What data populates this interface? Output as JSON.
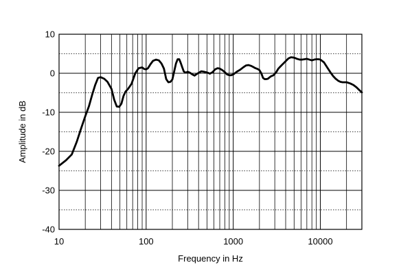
{
  "chart_data": {
    "type": "line",
    "xlabel": "Frequency in Hz",
    "ylabel": "Amplitude in dB",
    "xscale": "log",
    "xlim": [
      10,
      30000
    ],
    "ylim": [
      -40,
      10
    ],
    "grid": true,
    "legend": "none",
    "colors": {
      "line": "#000000",
      "grid": "#000000",
      "background": "#ffffff"
    },
    "x_tick_labels": [
      {
        "value": 10,
        "label": "10"
      },
      {
        "value": 100,
        "label": "100"
      },
      {
        "value": 1000,
        "label": "1000"
      },
      {
        "value": 10000,
        "label": "10000"
      }
    ],
    "y_tick_labels": [
      {
        "value": 10,
        "label": "10"
      },
      {
        "value": 0,
        "label": "0"
      },
      {
        "value": -10,
        "label": "-10"
      },
      {
        "value": -20,
        "label": "-20"
      },
      {
        "value": -30,
        "label": "-30"
      },
      {
        "value": -40,
        "label": "-40"
      }
    ],
    "series": [
      {
        "x": [
          10,
          12,
          14,
          16,
          18,
          20,
          22,
          24,
          26,
          28,
          30,
          33,
          36,
          40,
          43,
          46,
          49,
          52,
          55,
          58,
          62,
          68,
          75,
          82,
          90,
          95,
          100,
          105,
          112,
          120,
          130,
          140,
          150,
          160,
          170,
          180,
          190,
          200,
          210,
          220,
          230,
          240,
          250,
          260,
          270,
          280,
          290,
          300,
          320,
          340,
          360,
          380,
          400,
          430,
          460,
          500,
          540,
          580,
          620,
          660,
          700,
          750,
          800,
          850,
          900,
          950,
          1000,
          1100,
          1200,
          1300,
          1400,
          1500,
          1600,
          1700,
          1800,
          1900,
          2000,
          2100,
          2200,
          2300,
          2400,
          2500,
          2700,
          2900,
          3100,
          3300,
          3500,
          3800,
          4000,
          4300,
          4600,
          5000,
          5400,
          5800,
          6200,
          6600,
          7000,
          7500,
          8000,
          8500,
          9000,
          9500,
          10000,
          11000,
          12000,
          13000,
          14000,
          15000,
          16000,
          17000,
          18000,
          19000,
          20000,
          22000,
          24000,
          26000,
          28000,
          30000
        ],
        "y": [
          -23.7,
          -22.3,
          -20.8,
          -17.5,
          -14.0,
          -11.0,
          -8.5,
          -5.5,
          -3.0,
          -1.2,
          -1.0,
          -1.4,
          -2.2,
          -4.0,
          -6.8,
          -8.5,
          -8.6,
          -7.8,
          -5.8,
          -4.7,
          -4.0,
          -2.7,
          0.0,
          1.3,
          1.5,
          1.1,
          1.0,
          1.3,
          2.3,
          3.2,
          3.5,
          3.3,
          2.5,
          1.2,
          -1.5,
          -2.3,
          -2.2,
          -1.6,
          0.5,
          2.5,
          3.6,
          3.6,
          2.6,
          1.5,
          0.5,
          0.2,
          0.2,
          0.4,
          0.1,
          -0.3,
          -0.6,
          -0.2,
          0.1,
          0.5,
          0.4,
          0.2,
          -0.1,
          0.3,
          1.0,
          1.3,
          1.2,
          0.8,
          0.3,
          -0.3,
          -0.5,
          -0.5,
          -0.3,
          0.4,
          0.9,
          1.5,
          2.0,
          2.1,
          1.9,
          1.6,
          1.3,
          1.1,
          0.8,
          0.0,
          -1.2,
          -1.5,
          -1.5,
          -1.4,
          -0.8,
          -0.5,
          0.2,
          1.2,
          1.8,
          2.6,
          3.1,
          3.8,
          4.1,
          4.0,
          3.7,
          3.5,
          3.5,
          3.6,
          3.7,
          3.5,
          3.3,
          3.5,
          3.6,
          3.6,
          3.5,
          2.8,
          1.5,
          0.3,
          -0.7,
          -1.4,
          -1.9,
          -2.2,
          -2.3,
          -2.3,
          -2.3,
          -2.6,
          -3.0,
          -3.6,
          -4.3,
          -4.9
        ]
      }
    ]
  }
}
